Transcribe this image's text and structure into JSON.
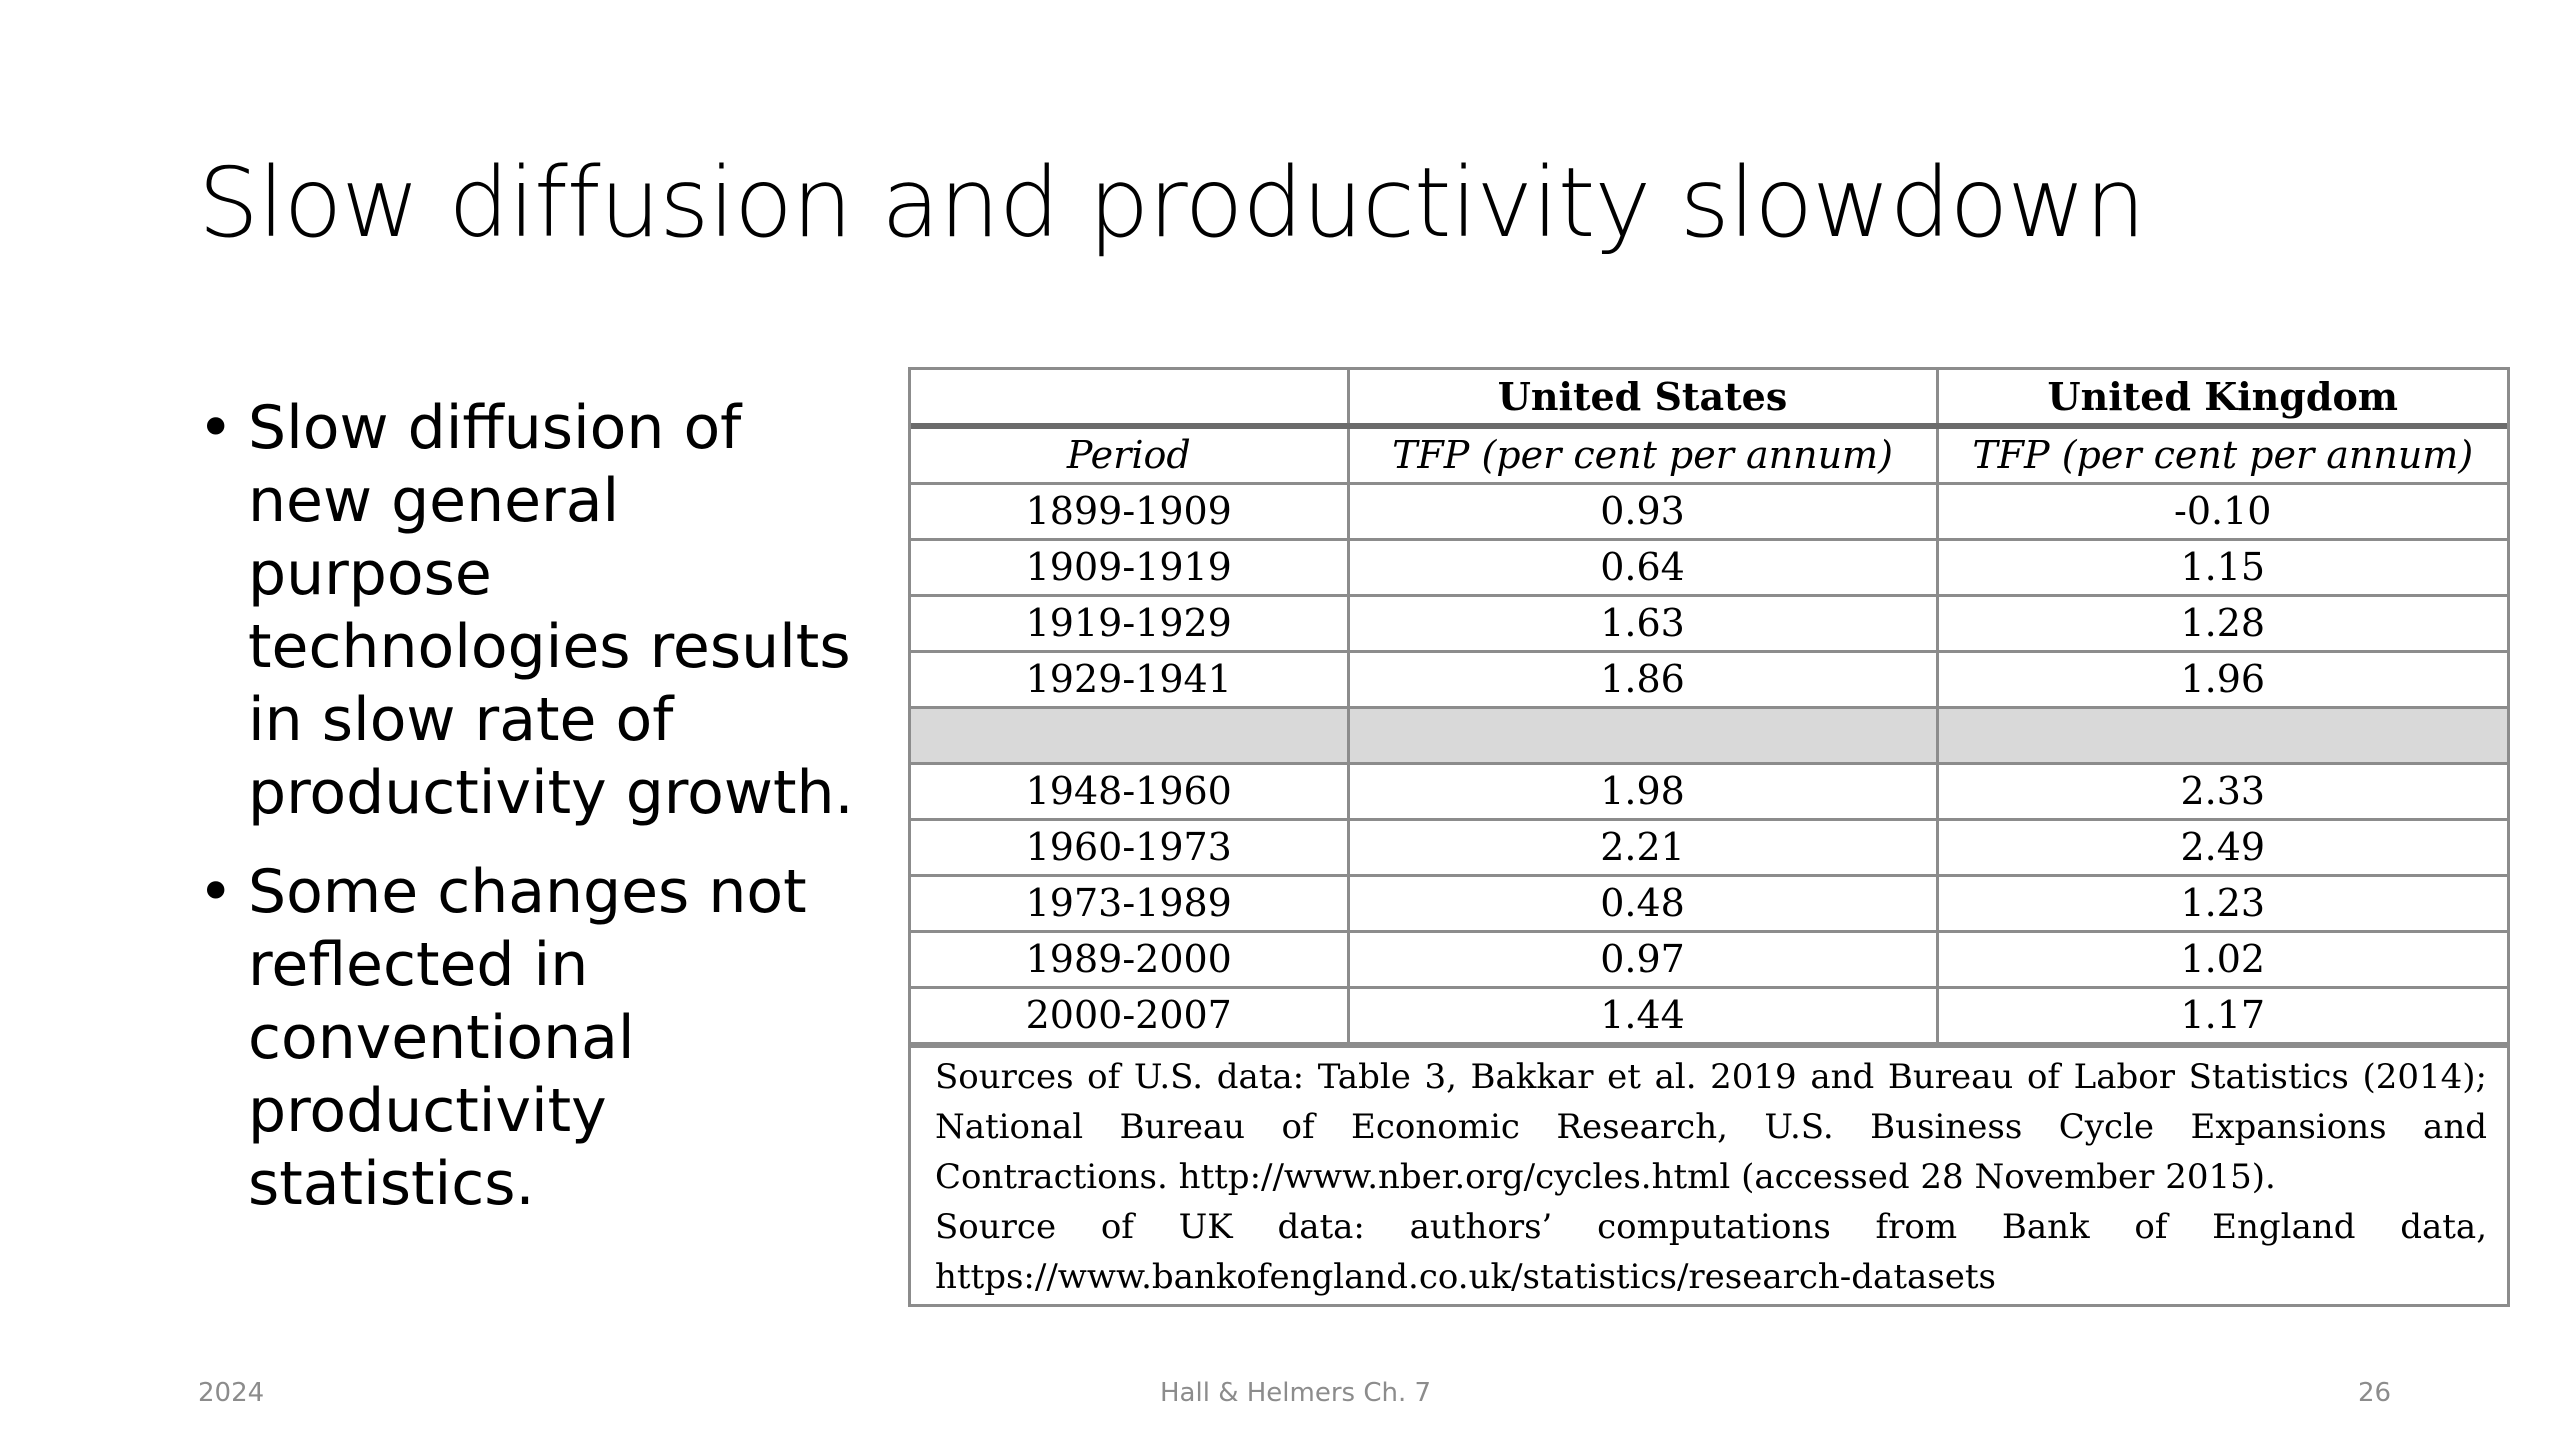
{
  "title": "Slow diffusion and productivity slowdown",
  "bullets": [
    "Slow diffusion of new general purpose technologies results in slow rate of productivity growth.",
    "Some changes not reflected in conventional productivity statistics."
  ],
  "table": {
    "header_countries": [
      "",
      "United States",
      "United Kingdom"
    ],
    "header_sub": [
      "Period",
      "TFP (per cent per annum)",
      "TFP (per cent per annum)"
    ],
    "rows": [
      [
        "1899-1909",
        "0.93",
        "-0.10"
      ],
      [
        "1909-1919",
        "0.64",
        "1.15"
      ],
      [
        "1919-1929",
        "1.63",
        "1.28"
      ],
      [
        "1929-1941",
        "1.86",
        "1.96"
      ],
      [
        "",
        "",
        ""
      ],
      [
        "1948-1960",
        "1.98",
        "2.33"
      ],
      [
        "1960-1973",
        "2.21",
        "2.49"
      ],
      [
        "1973-1989",
        "0.48",
        "1.23"
      ],
      [
        "1989-2000",
        "0.97",
        "1.02"
      ],
      [
        "2000-2007",
        "1.44",
        "1.17"
      ]
    ],
    "sources_us": "Sources of U.S. data: Table 3, Bakkar et al. 2019 and Bureau of Labor Statistics (2014); National Bureau of Economic Research, U.S. Business Cycle Expansions and Contractions. http://www.nber.org/cycles.html (accessed 28 November 2015).",
    "sources_uk": "Source of UK data: authors’ computations from Bank of England data, https://www.bankofengland.co.uk/statistics/research-datasets"
  },
  "footer": {
    "left": "2024",
    "center": "Hall & Helmers Ch. 7",
    "right": "26"
  }
}
